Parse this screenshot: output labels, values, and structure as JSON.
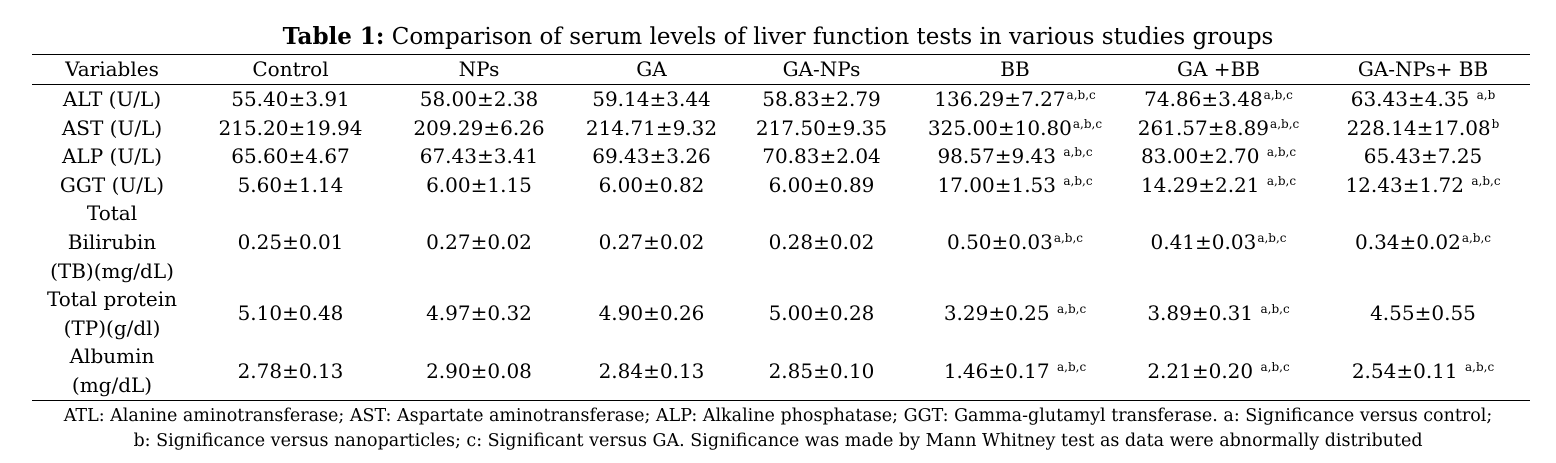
{
  "caption": {
    "label": "Table 1:",
    "text": " Comparison of serum levels of liver function tests in various studies groups"
  },
  "table": {
    "headers": [
      "Variables",
      "Control",
      "NPs",
      "GA",
      "GA-NPs",
      "BB",
      "GA +BB",
      "GA-NPs+ BB"
    ],
    "rows": [
      {
        "variable": [
          "ALT (U/L)"
        ],
        "cells": [
          {
            "v": "55.40±3.91",
            "s": ""
          },
          {
            "v": "58.00±2.38",
            "s": ""
          },
          {
            "v": "59.14±3.44",
            "s": ""
          },
          {
            "v": "58.83±2.79",
            "s": ""
          },
          {
            "v": "136.29±7.27",
            "s": "a,b,c"
          },
          {
            "v": "74.86±3.48",
            "s": "a,b,c"
          },
          {
            "v": "63.43±4.35 ",
            "s": "a,b"
          }
        ]
      },
      {
        "variable": [
          "AST (U/L)"
        ],
        "cells": [
          {
            "v": "215.20±19.94",
            "s": ""
          },
          {
            "v": "209.29±6.26",
            "s": ""
          },
          {
            "v": "214.71±9.32",
            "s": ""
          },
          {
            "v": "217.50±9.35",
            "s": ""
          },
          {
            "v": "325.00±10.80",
            "s": "a,b,c"
          },
          {
            "v": "261.57±8.89",
            "s": "a,b,c"
          },
          {
            "v": "228.14±17.08",
            "s": "b"
          }
        ]
      },
      {
        "variable": [
          "ALP (U/L)"
        ],
        "cells": [
          {
            "v": "65.60±4.67",
            "s": ""
          },
          {
            "v": "67.43±3.41",
            "s": ""
          },
          {
            "v": "69.43±3.26",
            "s": ""
          },
          {
            "v": "70.83±2.04",
            "s": ""
          },
          {
            "v": "98.57±9.43 ",
            "s": "a,b,c"
          },
          {
            "v": "83.00±2.70 ",
            "s": "a,b,c"
          },
          {
            "v": "65.43±7.25",
            "s": ""
          }
        ]
      },
      {
        "variable": [
          "GGT (U/L)"
        ],
        "cells": [
          {
            "v": "5.60±1.14",
            "s": ""
          },
          {
            "v": "6.00±1.15",
            "s": ""
          },
          {
            "v": "6.00±0.82",
            "s": ""
          },
          {
            "v": "6.00±0.89",
            "s": ""
          },
          {
            "v": "17.00±1.53 ",
            "s": "a,b,c"
          },
          {
            "v": "14.29±2.21 ",
            "s": "a,b,c"
          },
          {
            "v": "12.43±1.72 ",
            "s": "a,b,c"
          }
        ]
      },
      {
        "variable": [
          "Total",
          "Bilirubin",
          "(TB)(mg/dL)"
        ],
        "cells": [
          {
            "v": "0.25±0.01",
            "s": ""
          },
          {
            "v": "0.27±0.02",
            "s": ""
          },
          {
            "v": "0.27±0.02",
            "s": ""
          },
          {
            "v": "0.28±0.02",
            "s": ""
          },
          {
            "v": "0.50±0.03",
            "s": "a,b,c"
          },
          {
            "v": "0.41±0.03",
            "s": "a,b,c"
          },
          {
            "v": "0.34±0.02",
            "s": "a,b,c"
          }
        ]
      },
      {
        "variable": [
          "Total protein",
          "(TP)(g/dl)"
        ],
        "cells": [
          {
            "v": "5.10±0.48",
            "s": ""
          },
          {
            "v": "4.97±0.32",
            "s": ""
          },
          {
            "v": "4.90±0.26",
            "s": ""
          },
          {
            "v": "5.00±0.28",
            "s": ""
          },
          {
            "v": "3.29±0.25 ",
            "s": "a,b,c"
          },
          {
            "v": "3.89±0.31 ",
            "s": "a,b,c"
          },
          {
            "v": "4.55±0.55",
            "s": ""
          }
        ]
      },
      {
        "variable": [
          "Albumin",
          "(mg/dL)"
        ],
        "cells": [
          {
            "v": "2.78±0.13",
            "s": ""
          },
          {
            "v": "2.90±0.08",
            "s": ""
          },
          {
            "v": "2.84±0.13",
            "s": ""
          },
          {
            "v": "2.85±0.10",
            "s": ""
          },
          {
            "v": "1.46±0.17 ",
            "s": "a,b,c"
          },
          {
            "v": "2.21±0.20 ",
            "s": "a,b,c"
          },
          {
            "v": "2.54±0.11 ",
            "s": "a,b,c"
          }
        ]
      }
    ]
  },
  "footnote": {
    "line1": "ATL: Alanine aminotransferase; AST: Aspartate aminotransferase; ALP: Alkaline phosphatase; GGT: Gamma-glutamyl transferase. a: Significance versus control;",
    "line2": "b: Significance versus nanoparticles; c: Significant versus GA. Significance was made by Mann Whitney test as data were abnormally distributed"
  }
}
